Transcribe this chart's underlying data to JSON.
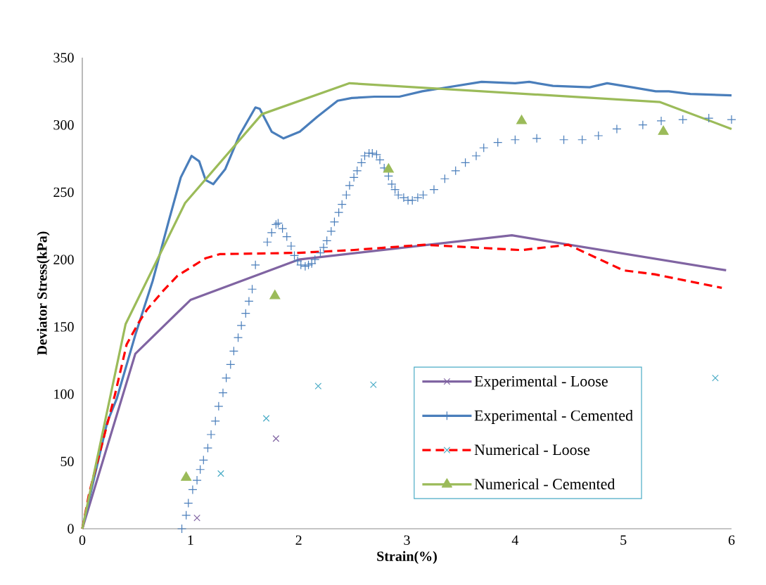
{
  "chart_data": {
    "type": "line",
    "xlabel": "Strain(%)",
    "ylabel": "Deviator Stress(kPa)",
    "xlim": [
      0,
      6
    ],
    "ylim": [
      0,
      350
    ],
    "xticks": [
      0,
      1,
      2,
      3,
      4,
      5,
      6
    ],
    "yticks": [
      0,
      50,
      100,
      150,
      200,
      250,
      300,
      350
    ],
    "legend": "bottom right",
    "grid": false,
    "series": [
      {
        "name": "Experimental - Loose",
        "color": "#8064a2",
        "x": [
          0,
          0.49,
          1.0,
          2.0,
          3.97,
          5.95
        ],
        "values": [
          0,
          130,
          170,
          200,
          218,
          192
        ]
      },
      {
        "name": "Experimental - Cemented",
        "color": "#4a7ebb",
        "x": [
          0,
          0.23,
          0.32,
          0.49,
          0.65,
          0.8,
          0.91,
          1.01,
          1.08,
          1.14,
          1.21,
          1.32,
          1.45,
          1.6,
          1.64,
          1.75,
          1.86,
          2.01,
          2.17,
          2.36,
          2.49,
          2.7,
          2.93,
          3.14,
          3.3,
          3.69,
          4.0,
          4.13,
          4.35,
          4.69,
          4.85,
          5.08,
          5.3,
          5.42,
          5.62,
          6.0
        ],
        "values": [
          0,
          79,
          97,
          144,
          184,
          229,
          261,
          277,
          273,
          259,
          256,
          267,
          292,
          313,
          312,
          295,
          290,
          295,
          306,
          318,
          320,
          321,
          321,
          325,
          327,
          332,
          331,
          332,
          329,
          328,
          331,
          328,
          325,
          325,
          323,
          322
        ]
      },
      {
        "name": "Numerical - Loose",
        "color": "#ff0000",
        "line_style": "dashed",
        "x": [
          0,
          0.065,
          0.15,
          0.3,
          0.41,
          0.52,
          0.6,
          0.75,
          0.88,
          1.14,
          1.27,
          2.0,
          2.49,
          3.16,
          4.06,
          4.49,
          5.0,
          5.29,
          5.91
        ],
        "values": [
          0,
          27,
          53,
          99,
          137,
          153,
          163,
          177,
          188,
          201,
          204,
          205,
          207,
          211,
          207,
          211,
          192,
          189,
          179
        ]
      },
      {
        "name": "Numerical - Cemented",
        "color": "#9bbb59",
        "x": [
          0,
          0.4,
          0.95,
          1.66,
          2.47,
          5.34,
          6.0
        ],
        "values": [
          0,
          152,
          242,
          308,
          331,
          317,
          297
        ]
      },
      {
        "type": "scatter",
        "marker": "cross",
        "color": "#8064a2",
        "x": [
          1.06,
          1.79
        ],
        "values": [
          8,
          67
        ]
      },
      {
        "type": "scatter",
        "marker": "plus",
        "color": "#4a7ebb",
        "x": [
          0.92,
          0.96,
          0.98,
          1.02,
          1.06,
          1.09,
          1.12,
          1.16,
          1.19,
          1.23,
          1.26,
          1.3,
          1.33,
          1.37,
          1.4,
          1.44,
          1.47,
          1.51,
          1.54,
          1.57,
          1.6,
          1.71,
          1.75,
          1.79,
          1.81,
          1.85,
          1.89,
          1.93,
          1.96,
          1.99,
          2.02,
          2.06,
          2.09,
          2.12,
          2.15,
          2.2,
          2.23,
          2.26,
          2.3,
          2.33,
          2.37,
          2.4,
          2.44,
          2.47,
          2.51,
          2.54,
          2.58,
          2.61,
          2.65,
          2.68,
          2.72,
          2.75,
          2.79,
          2.83,
          2.86,
          2.89,
          2.92,
          2.97,
          3.01,
          3.05,
          3.1,
          3.15,
          3.25,
          3.35,
          3.45,
          3.54,
          3.64,
          3.71,
          3.84,
          4.0,
          4.2,
          4.45,
          4.62,
          4.77,
          4.94,
          5.18,
          5.35,
          5.55,
          5.79,
          6.0
        ],
        "values": [
          0,
          10,
          19,
          29,
          36,
          44,
          51,
          60,
          70,
          80,
          91,
          101,
          112,
          122,
          132,
          142,
          151,
          160,
          169,
          178,
          196,
          213,
          220,
          226,
          227,
          223,
          217,
          210,
          203,
          199,
          196,
          195,
          196,
          197,
          200,
          205,
          209,
          214,
          221,
          228,
          235,
          241,
          248,
          255,
          261,
          266,
          272,
          277,
          279,
          279,
          278,
          274,
          268,
          262,
          256,
          252,
          248,
          246,
          244,
          244,
          246,
          248,
          252,
          260,
          266,
          272,
          277,
          283,
          287,
          289,
          290,
          289,
          289,
          292,
          297,
          300,
          303,
          304,
          305,
          304
        ]
      },
      {
        "type": "scatter",
        "marker": "cross",
        "color": "#4bacc6",
        "x": [
          1.28,
          1.7,
          2.18,
          2.69,
          5.85
        ],
        "values": [
          41,
          82,
          106,
          107,
          112
        ]
      },
      {
        "type": "scatter",
        "marker": "triangle",
        "color": "#9bbb59",
        "x": [
          0.96,
          1.78,
          2.83,
          4.06,
          5.37
        ],
        "values": [
          38,
          173,
          267,
          303,
          295
        ]
      }
    ]
  }
}
